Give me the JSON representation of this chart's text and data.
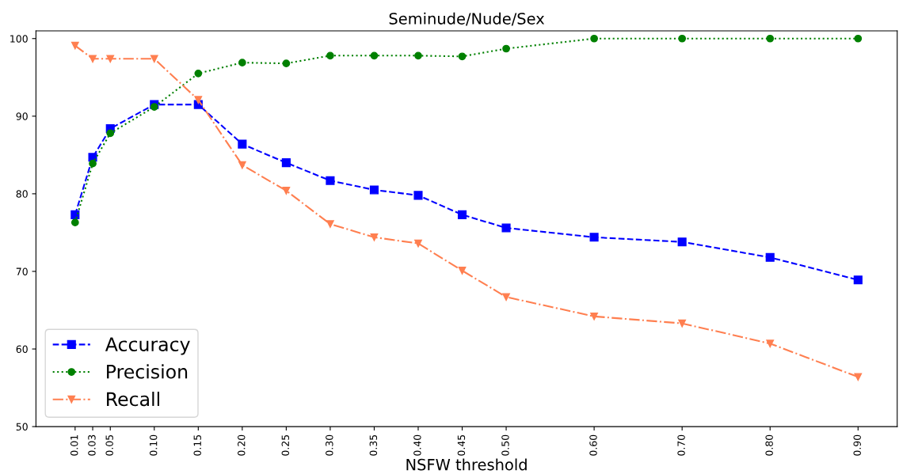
{
  "chart_data": {
    "type": "line",
    "title": "Seminude/Nude/Sex",
    "xlabel": "NSFW threshold",
    "x": [
      0.01,
      0.03,
      0.05,
      0.1,
      0.15,
      0.2,
      0.25,
      0.3,
      0.35,
      0.4,
      0.45,
      0.5,
      0.6,
      0.7,
      0.8,
      0.9
    ],
    "series": [
      {
        "name": "Accuracy",
        "color": "#0000ff",
        "marker": "square",
        "line_style": "dashed",
        "values": [
          77.3,
          84.7,
          88.4,
          91.5,
          91.5,
          86.4,
          84.0,
          81.7,
          80.5,
          79.8,
          77.3,
          75.6,
          74.4,
          73.8,
          71.8,
          68.9
        ]
      },
      {
        "name": "Precision",
        "color": "#008000",
        "marker": "circle",
        "line_style": "dotted",
        "values": [
          76.3,
          83.9,
          87.8,
          91.2,
          95.5,
          96.9,
          96.8,
          97.8,
          97.8,
          97.8,
          97.7,
          98.7,
          100,
          100,
          100,
          100
        ]
      },
      {
        "name": "Recall",
        "color": "#ff7f50",
        "marker": "triangle",
        "line_style": "dashdot",
        "values": [
          99.1,
          97.4,
          97.4,
          97.4,
          92.1,
          83.7,
          80.4,
          76.1,
          74.4,
          73.6,
          70.1,
          66.7,
          64.2,
          63.3,
          60.7,
          56.4
        ]
      }
    ],
    "xlim": [
      -0.0345,
      0.9445
    ],
    "xticks": [
      {
        "value": 0.01,
        "label": "0.01"
      },
      {
        "value": 0.03,
        "label": "0.03"
      },
      {
        "value": 0.05,
        "label": "0.05"
      },
      {
        "value": 0.1,
        "label": "0.10"
      },
      {
        "value": 0.15,
        "label": "0.15"
      },
      {
        "value": 0.2,
        "label": "0.20"
      },
      {
        "value": 0.25,
        "label": "0.25"
      },
      {
        "value": 0.3,
        "label": "0.30"
      },
      {
        "value": 0.35,
        "label": "0.35"
      },
      {
        "value": 0.4,
        "label": "0.40"
      },
      {
        "value": 0.45,
        "label": "0.45"
      },
      {
        "value": 0.5,
        "label": "0.50"
      },
      {
        "value": 0.6,
        "label": "0.60"
      },
      {
        "value": 0.7,
        "label": "0.70"
      },
      {
        "value": 0.8,
        "label": "0.80"
      },
      {
        "value": 0.9,
        "label": "0.90"
      }
    ],
    "ylim": [
      50,
      101
    ],
    "yticks": [
      50,
      60,
      70,
      80,
      90,
      100
    ],
    "legend": "bottom left",
    "grid": false
  }
}
